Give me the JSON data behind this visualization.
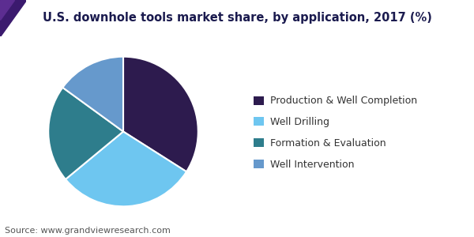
{
  "title": "U.S. downhole tools market share, by application, 2017 (%)",
  "labels": [
    "Production & Well Completion",
    "Well Drilling",
    "Formation & Evaluation",
    "Well Intervention"
  ],
  "sizes": [
    34,
    30,
    21,
    15
  ],
  "colors": [
    "#2d1b4e",
    "#6ec6f0",
    "#2e7d8c",
    "#6699cc"
  ],
  "startangle": 90,
  "source": "Source: www.grandviewresearch.com",
  "title_color": "#1a1a4e",
  "title_fontsize": 10.5,
  "legend_fontsize": 9,
  "source_fontsize": 8,
  "background_color": "#ffffff",
  "wedge_edgecolor": "#ffffff",
  "wedge_linewidth": 1.5
}
